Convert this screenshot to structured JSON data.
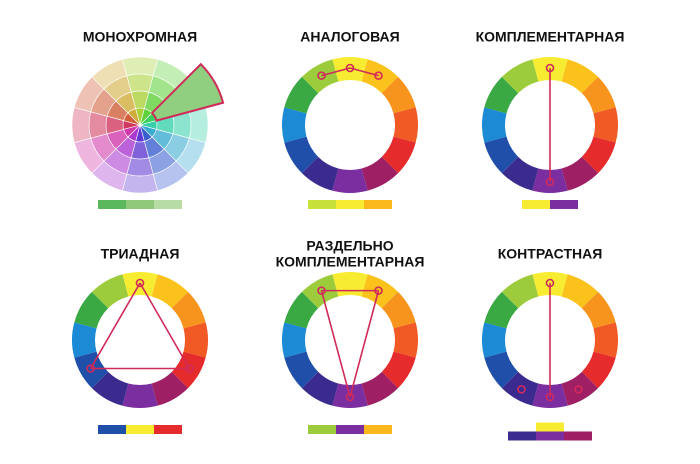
{
  "panels": [
    {
      "title": [
        "МОНОХРОМНАЯ"
      ],
      "swatches": [
        [
          "#5cb85c",
          "#8fca7a",
          "#b8dca6"
        ]
      ]
    },
    {
      "title": [
        "АНАЛОГОВАЯ"
      ],
      "swatches": [
        [
          "#c8e03a",
          "#f7ec31",
          "#fbb81c"
        ]
      ]
    },
    {
      "title": [
        "КОМПЛЕМЕНТАРНАЯ"
      ],
      "swatches": [
        [
          "#f7ec31",
          "#7b2ea0"
        ]
      ]
    },
    {
      "title": [
        "ТРИАДНАЯ"
      ],
      "swatches": [
        [
          "#1f4fa8",
          "#f7ec31",
          "#e52b2b"
        ]
      ]
    },
    {
      "title": [
        "РАЗДЕЛЬНО",
        "КОМПЛЕМЕНТАРНАЯ"
      ],
      "swatches": [
        [
          "#9ccc3c",
          "#7b2ea0",
          "#fbb81c"
        ]
      ]
    },
    {
      "title": [
        "КОНТРАСТНАЯ"
      ],
      "swatches": [
        [
          "#f7ec31"
        ],
        [
          "#3b2b8f",
          "#7b2ea0",
          "#9e1f63"
        ]
      ]
    }
  ]
}
